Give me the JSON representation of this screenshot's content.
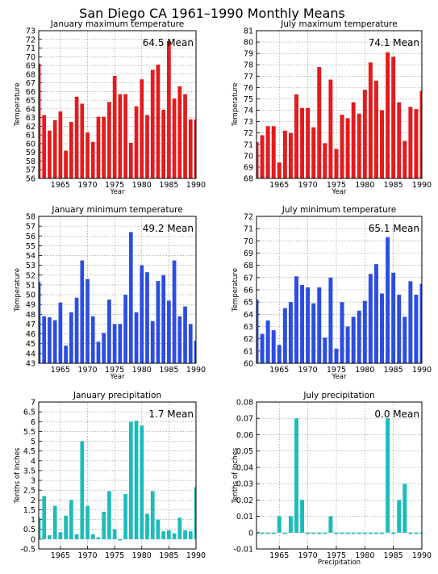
{
  "main_title": "San Diego CA  1961–1990 Monthly Means",
  "chart_data": [
    {
      "type": "bar",
      "title": "January maximum temperature",
      "mean_label": "64.5 Mean",
      "ylabel": "Temperature",
      "xlabel": "Year",
      "color": "#e41a1c",
      "ylim": [
        56,
        73
      ],
      "yticks": [
        "56",
        "57",
        "58",
        "59",
        "60",
        "61",
        "62",
        "63",
        "64",
        "65",
        "66",
        "67",
        "68",
        "69",
        "70",
        "71",
        "72",
        "73"
      ],
      "xticks": [
        "1965",
        "1970",
        "1975",
        "1980",
        "1985",
        "1990"
      ],
      "x": [
        1961,
        1962,
        1963,
        1964,
        1965,
        1966,
        1967,
        1968,
        1969,
        1970,
        1971,
        1972,
        1973,
        1974,
        1975,
        1976,
        1977,
        1978,
        1979,
        1980,
        1981,
        1982,
        1983,
        1984,
        1985,
        1986,
        1987,
        1988,
        1989,
        1990
      ],
      "values": [
        69.2,
        63.3,
        61.5,
        62.7,
        63.7,
        59.2,
        62.5,
        65.4,
        64.6,
        61.3,
        60.2,
        63.1,
        63.1,
        64.8,
        67.8,
        65.7,
        65.7,
        60.1,
        64.3,
        67.4,
        63.3,
        68.5,
        69.1,
        63.9,
        71.8,
        65.2,
        66.6,
        65.7,
        62.8,
        62.8
      ]
    },
    {
      "type": "bar",
      "title": "July maximum temperature",
      "mean_label": "74.1 Mean",
      "ylabel": "Temperature",
      "xlabel": "Year",
      "color": "#e41a1c",
      "ylim": [
        68,
        81
      ],
      "yticks": [
        "68",
        "69",
        "70",
        "71",
        "72",
        "73",
        "74",
        "75",
        "76",
        "77",
        "78",
        "79",
        "80",
        "81"
      ],
      "xticks": [
        "1965",
        "1970",
        "1975",
        "1980",
        "1985",
        "1990"
      ],
      "x": [
        1961,
        1962,
        1963,
        1964,
        1965,
        1966,
        1967,
        1968,
        1969,
        1970,
        1971,
        1972,
        1973,
        1974,
        1975,
        1976,
        1977,
        1978,
        1979,
        1980,
        1981,
        1982,
        1983,
        1984,
        1985,
        1986,
        1987,
        1988,
        1989,
        1990
      ],
      "values": [
        71.2,
        71.8,
        72.6,
        72.6,
        69.4,
        72.2,
        72.0,
        75.4,
        74.2,
        74.2,
        72.5,
        77.8,
        71.1,
        76.7,
        70.6,
        73.6,
        73.3,
        74.7,
        73.7,
        75.8,
        78.2,
        76.6,
        74.0,
        79.1,
        78.7,
        74.7,
        71.3,
        74.3,
        74.1,
        75.7
      ]
    },
    {
      "type": "bar",
      "title": "January minimum temperature",
      "mean_label": "49.2 Mean",
      "ylabel": "Temperature",
      "xlabel": "Year",
      "color": "#2b4de1",
      "ylim": [
        43,
        58
      ],
      "yticks": [
        "43",
        "44",
        "45",
        "46",
        "47",
        "48",
        "49",
        "50",
        "51",
        "52",
        "53",
        "54",
        "55",
        "56",
        "57",
        "58"
      ],
      "xticks": [
        "1965",
        "1970",
        "1975",
        "1980",
        "1985",
        "1990"
      ],
      "x": [
        1961,
        1962,
        1963,
        1964,
        1965,
        1966,
        1967,
        1968,
        1969,
        1970,
        1971,
        1972,
        1973,
        1974,
        1975,
        1976,
        1977,
        1978,
        1979,
        1980,
        1981,
        1982,
        1983,
        1984,
        1985,
        1986,
        1987,
        1988,
        1989,
        1990
      ],
      "values": [
        51.3,
        47.8,
        47.7,
        47.4,
        49.2,
        44.8,
        48.2,
        49.7,
        53.5,
        51.6,
        47.8,
        45.2,
        46.1,
        49.5,
        47.0,
        47.0,
        50.0,
        56.4,
        48.2,
        53.0,
        52.3,
        47.3,
        51.4,
        52.0,
        49.4,
        53.5,
        47.8,
        48.8,
        47.0,
        45.3
      ]
    },
    {
      "type": "bar",
      "title": "July minimum temperature",
      "mean_label": "65.1 Mean",
      "ylabel": "Temperature",
      "xlabel": "Year",
      "color": "#2b4de1",
      "ylim": [
        60,
        72
      ],
      "yticks": [
        "60",
        "61",
        "62",
        "63",
        "64",
        "65",
        "66",
        "67",
        "68",
        "69",
        "70",
        "71",
        "72"
      ],
      "xticks": [
        "1965",
        "1970",
        "1975",
        "1980",
        "1985",
        "1990"
      ],
      "x": [
        1961,
        1962,
        1963,
        1964,
        1965,
        1966,
        1967,
        1968,
        1969,
        1970,
        1971,
        1972,
        1973,
        1974,
        1975,
        1976,
        1977,
        1978,
        1979,
        1980,
        1981,
        1982,
        1983,
        1984,
        1985,
        1986,
        1987,
        1988,
        1989,
        1990
      ],
      "values": [
        65.2,
        62.4,
        63.5,
        62.7,
        61.5,
        64.5,
        65.0,
        67.1,
        66.4,
        66.2,
        64.9,
        66.2,
        62.1,
        67.0,
        61.2,
        65.0,
        63.0,
        63.8,
        64.3,
        65.1,
        67.3,
        68.1,
        65.7,
        70.3,
        67.4,
        65.6,
        63.8,
        66.7,
        65.6,
        66.5
      ]
    },
    {
      "type": "bar",
      "title": "January precipitation",
      "mean_label": "1.7 Mean",
      "ylabel": "Tenths of Inches",
      "xlabel": "",
      "color": "#1bbcbc",
      "ylim": [
        -0.5,
        7
      ],
      "yticks": [
        "-0.5",
        "0",
        "0.5",
        "1",
        "1.5",
        "2",
        "2.5",
        "3",
        "3.5",
        "4",
        "4.5",
        "5",
        "5.5",
        "6",
        "6.5",
        "7"
      ],
      "xticks": [
        "1965",
        "1970",
        "1975",
        "1980",
        "1985",
        "1990"
      ],
      "x": [
        1961,
        1962,
        1963,
        1964,
        1965,
        1966,
        1967,
        1968,
        1969,
        1970,
        1971,
        1972,
        1973,
        1974,
        1975,
        1976,
        1977,
        1978,
        1979,
        1980,
        1981,
        1982,
        1983,
        1984,
        1985,
        1986,
        1987,
        1988,
        1989,
        1990
      ],
      "values": [
        1.1,
        2.2,
        0.2,
        1.7,
        0.35,
        1.2,
        2.0,
        0.25,
        5.0,
        1.7,
        0.25,
        0.1,
        1.4,
        2.45,
        0.5,
        0.0,
        2.3,
        6.0,
        6.05,
        5.8,
        1.3,
        2.45,
        1.0,
        0.4,
        0.45,
        0.3,
        1.1,
        0.45,
        0.4,
        2.65
      ]
    },
    {
      "type": "bar",
      "title": "July precipitation",
      "mean_label": "0.0 Mean",
      "ylabel": "Tenths of Inches",
      "xlabel": "Precipitation",
      "color": "#1bbcbc",
      "ylim": [
        -0.01,
        0.08
      ],
      "yticks": [
        "-0.01",
        "0",
        "0.01",
        "0.02",
        "0.03",
        "0.04",
        "0.05",
        "0.06",
        "0.07",
        "0.08"
      ],
      "xticks": [
        "1965",
        "1970",
        "1975",
        "1980",
        "1985",
        "1990"
      ],
      "x": [
        1961,
        1962,
        1963,
        1964,
        1965,
        1966,
        1967,
        1968,
        1969,
        1970,
        1971,
        1972,
        1973,
        1974,
        1975,
        1976,
        1977,
        1978,
        1979,
        1980,
        1981,
        1982,
        1983,
        1984,
        1985,
        1986,
        1987,
        1988,
        1989,
        1990
      ],
      "values": [
        0,
        0,
        0,
        0,
        0.01,
        0,
        0.01,
        0.07,
        0.02,
        0,
        0,
        0,
        0,
        0.01,
        0,
        0,
        0,
        0,
        0,
        0,
        0,
        0,
        0,
        0.07,
        0,
        0.02,
        0.03,
        0,
        0,
        0
      ]
    }
  ]
}
